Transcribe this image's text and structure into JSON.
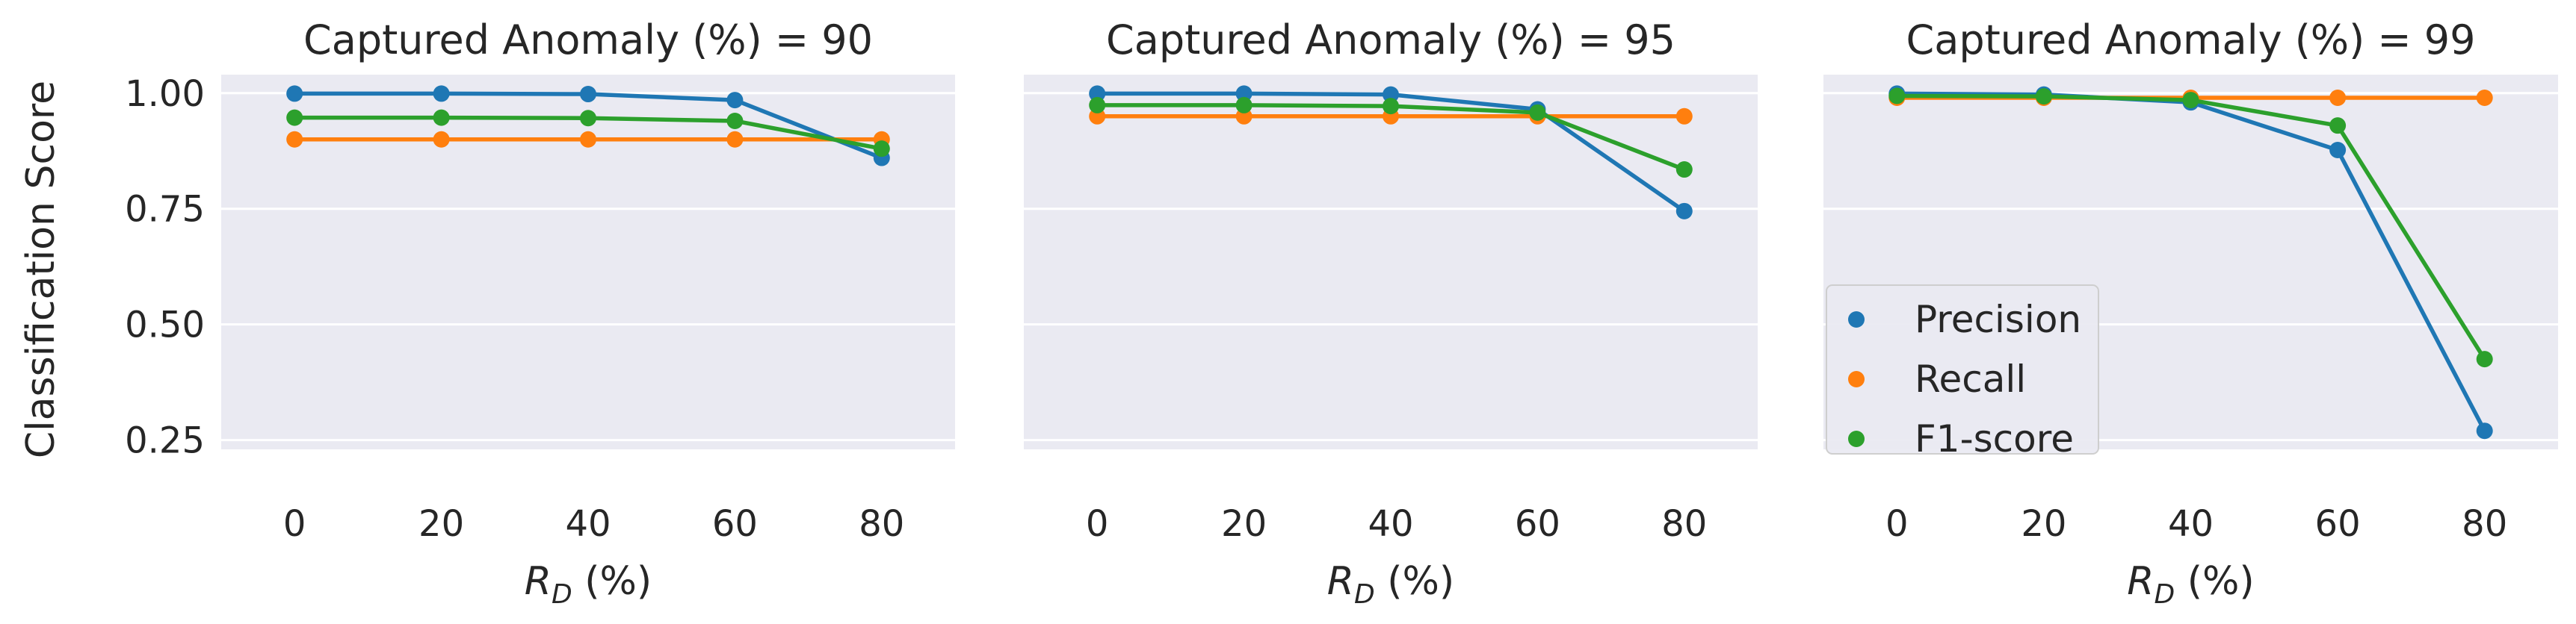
{
  "figure": {
    "ylabel": "Classification Score",
    "xlabel_main": "R",
    "xlabel_sub": "D",
    "xlabel_suffix": " (%)"
  },
  "legend": {
    "location": "lower-left of third panel",
    "items": [
      {
        "label": "Precision",
        "color": "#1f77b4"
      },
      {
        "label": "Recall",
        "color": "#ff7f0e"
      },
      {
        "label": "F1-score",
        "color": "#2ca02c"
      }
    ]
  },
  "chart_data": [
    {
      "type": "line",
      "title": "Captured Anomaly (%) = 90",
      "x": [
        0,
        20,
        40,
        60,
        80
      ],
      "xticks": [
        "0",
        "20",
        "40",
        "60",
        "80"
      ],
      "yticks": [
        "0.25",
        "0.50",
        "0.75",
        "1.00"
      ],
      "ylim": [
        0.23,
        1.04
      ],
      "grid": true,
      "series": [
        {
          "name": "Precision",
          "color": "#1f77b4",
          "values": [
            0.999,
            0.999,
            0.998,
            0.985,
            0.86
          ]
        },
        {
          "name": "Recall",
          "color": "#ff7f0e",
          "values": [
            0.9,
            0.9,
            0.9,
            0.9,
            0.9
          ]
        },
        {
          "name": "F1-score",
          "color": "#2ca02c",
          "values": [
            0.947,
            0.947,
            0.946,
            0.94,
            0.88
          ]
        }
      ]
    },
    {
      "type": "line",
      "title": "Captured Anomaly (%) = 95",
      "x": [
        0,
        20,
        40,
        60,
        80
      ],
      "xticks": [
        "0",
        "20",
        "40",
        "60",
        "80"
      ],
      "yticks": [
        "0.25",
        "0.50",
        "0.75",
        "1.00"
      ],
      "ylim": [
        0.23,
        1.04
      ],
      "grid": true,
      "series": [
        {
          "name": "Precision",
          "color": "#1f77b4",
          "values": [
            0.999,
            0.999,
            0.997,
            0.965,
            0.745
          ]
        },
        {
          "name": "Recall",
          "color": "#ff7f0e",
          "values": [
            0.95,
            0.95,
            0.95,
            0.95,
            0.95
          ]
        },
        {
          "name": "F1-score",
          "color": "#2ca02c",
          "values": [
            0.974,
            0.974,
            0.972,
            0.958,
            0.835
          ]
        }
      ]
    },
    {
      "type": "line",
      "title": "Captured Anomaly (%) = 99",
      "x": [
        0,
        20,
        40,
        60,
        80
      ],
      "xticks": [
        "0",
        "20",
        "40",
        "60",
        "80"
      ],
      "yticks": [
        "0.25",
        "0.50",
        "0.75",
        "1.00"
      ],
      "ylim": [
        0.23,
        1.04
      ],
      "grid": true,
      "series": [
        {
          "name": "Precision",
          "color": "#1f77b4",
          "values": [
            0.999,
            0.997,
            0.98,
            0.877,
            0.27
          ]
        },
        {
          "name": "Recall",
          "color": "#ff7f0e",
          "values": [
            0.99,
            0.99,
            0.99,
            0.99,
            0.99
          ]
        },
        {
          "name": "F1-score",
          "color": "#2ca02c",
          "values": [
            0.994,
            0.993,
            0.985,
            0.93,
            0.425
          ]
        }
      ]
    }
  ]
}
